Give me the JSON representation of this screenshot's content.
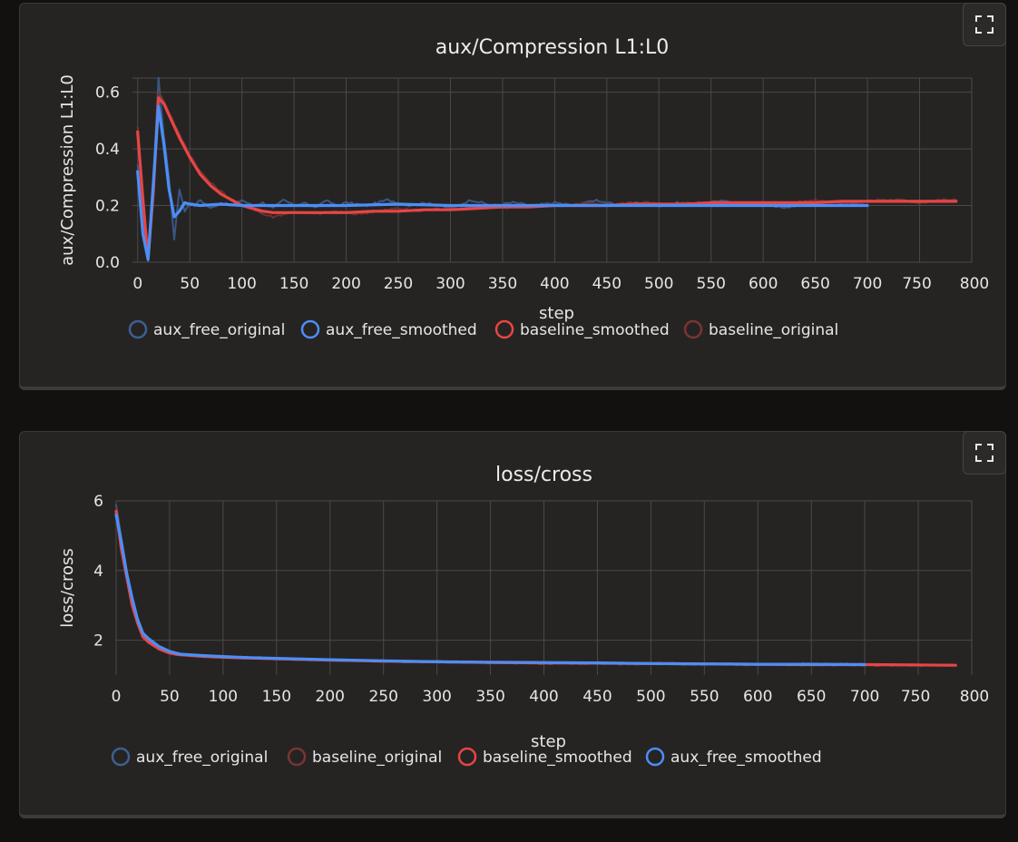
{
  "panels": [
    {
      "expand_icon": "fullscreen-icon",
      "chart_data": {
        "type": "line",
        "title": "aux/Compression L1:L0",
        "xlabel": "step",
        "ylabel": "aux/Compression L1:L0",
        "xlim": [
          -5,
          800
        ],
        "ylim": [
          0,
          0.65
        ],
        "x_ticks": [
          0,
          50,
          100,
          150,
          200,
          250,
          300,
          350,
          400,
          450,
          500,
          550,
          600,
          650,
          700,
          750,
          800
        ],
        "y_ticks": [
          0.0,
          0.2,
          0.4,
          0.6
        ],
        "y_tick_labels": [
          "0.0",
          "0.2",
          "0.4",
          "0.6"
        ],
        "grid": true,
        "legend_position": "bottom",
        "legend": [
          "aux_free_original",
          "aux_free_smoothed",
          "baseline_smoothed",
          "baseline_original"
        ],
        "series": [
          {
            "name": "aux_free_original",
            "color": "#3e5f93",
            "style": "raw",
            "x": [
              0,
              5,
              10,
              15,
              20,
              25,
              30,
              35,
              40,
              45,
              50,
              55,
              60,
              70,
              80,
              90,
              100,
              110,
              120,
              130,
              140,
              150,
              160,
              170,
              180,
              190,
              200,
              220,
              240,
              260,
              280,
              300,
              320,
              340,
              360,
              380,
              400,
              420,
              440,
              460,
              480,
              500,
              520,
              540,
              560,
              580,
              600,
              620,
              640,
              660,
              680,
              700
            ],
            "y": [
              0.34,
              0.1,
              0.0,
              0.3,
              0.65,
              0.45,
              0.3,
              0.08,
              0.26,
              0.18,
              0.21,
              0.2,
              0.22,
              0.19,
              0.21,
              0.2,
              0.22,
              0.2,
              0.21,
              0.19,
              0.22,
              0.2,
              0.21,
              0.19,
              0.22,
              0.2,
              0.21,
              0.2,
              0.22,
              0.2,
              0.21,
              0.19,
              0.22,
              0.2,
              0.21,
              0.2,
              0.21,
              0.2,
              0.22,
              0.2,
              0.21,
              0.2,
              0.21,
              0.2,
              0.22,
              0.2,
              0.21,
              0.19,
              0.21,
              0.2,
              0.21,
              0.2
            ]
          },
          {
            "name": "baseline_original",
            "color": "#7a3434",
            "style": "raw",
            "x": [
              0,
              5,
              10,
              15,
              20,
              25,
              30,
              40,
              50,
              60,
              70,
              80,
              90,
              100,
              110,
              120,
              130,
              140,
              150,
              170,
              190,
              210,
              230,
              250,
              270,
              290,
              310,
              330,
              350,
              370,
              390,
              410,
              430,
              450,
              470,
              490,
              510,
              530,
              550,
              570,
              590,
              610,
              630,
              650,
              670,
              690,
              710,
              730,
              750,
              770,
              785
            ],
            "y": [
              0.48,
              0.25,
              0.02,
              0.25,
              0.6,
              0.57,
              0.53,
              0.45,
              0.38,
              0.32,
              0.28,
              0.25,
              0.22,
              0.2,
              0.19,
              0.17,
              0.16,
              0.17,
              0.18,
              0.17,
              0.18,
              0.17,
              0.18,
              0.19,
              0.18,
              0.19,
              0.19,
              0.2,
              0.19,
              0.2,
              0.2,
              0.2,
              0.21,
              0.2,
              0.21,
              0.21,
              0.2,
              0.21,
              0.21,
              0.2,
              0.21,
              0.21,
              0.21,
              0.22,
              0.21,
              0.21,
              0.22,
              0.22,
              0.21,
              0.22,
              0.22
            ]
          },
          {
            "name": "baseline_smoothed",
            "color": "#e84545",
            "style": "smooth",
            "x": [
              0,
              5,
              10,
              15,
              20,
              25,
              30,
              40,
              50,
              60,
              70,
              80,
              90,
              100,
              110,
              120,
              130,
              140,
              150,
              175,
              200,
              225,
              250,
              275,
              300,
              325,
              350,
              375,
              400,
              425,
              450,
              475,
              500,
              525,
              550,
              575,
              600,
              625,
              650,
              675,
              700,
              725,
              750,
              775,
              785
            ],
            "y": [
              0.46,
              0.22,
              0.01,
              0.25,
              0.58,
              0.56,
              0.52,
              0.44,
              0.37,
              0.31,
              0.27,
              0.24,
              0.22,
              0.2,
              0.19,
              0.18,
              0.175,
              0.175,
              0.175,
              0.175,
              0.175,
              0.18,
              0.18,
              0.185,
              0.185,
              0.19,
              0.195,
              0.195,
              0.2,
              0.2,
              0.2,
              0.205,
              0.205,
              0.205,
              0.21,
              0.21,
              0.21,
              0.21,
              0.21,
              0.215,
              0.215,
              0.215,
              0.215,
              0.215,
              0.215
            ]
          },
          {
            "name": "aux_free_smoothed",
            "color": "#4c8ef7",
            "style": "smooth",
            "x": [
              0,
              5,
              10,
              15,
              20,
              25,
              30,
              35,
              40,
              45,
              50,
              60,
              80,
              100,
              125,
              150,
              175,
              200,
              250,
              300,
              350,
              400,
              450,
              500,
              550,
              600,
              650,
              700
            ],
            "y": [
              0.32,
              0.1,
              0.01,
              0.28,
              0.55,
              0.42,
              0.26,
              0.16,
              0.18,
              0.21,
              0.205,
              0.2,
              0.205,
              0.2,
              0.2,
              0.2,
              0.2,
              0.2,
              0.205,
              0.2,
              0.2,
              0.2,
              0.2,
              0.2,
              0.2,
              0.2,
              0.2,
              0.2
            ]
          }
        ]
      }
    },
    {
      "expand_icon": "fullscreen-icon",
      "chart_data": {
        "type": "line",
        "title": "loss/cross",
        "xlabel": "step",
        "ylabel": "loss/cross",
        "xlim": [
          0,
          800
        ],
        "ylim": [
          1.0,
          6.0
        ],
        "x_ticks": [
          0,
          50,
          100,
          150,
          200,
          250,
          300,
          350,
          400,
          450,
          500,
          550,
          600,
          650,
          700,
          750,
          800
        ],
        "y_ticks": [
          2,
          4,
          6
        ],
        "y_tick_labels": [
          "2",
          "4",
          "6"
        ],
        "grid": true,
        "legend_position": "bottom",
        "legend": [
          "aux_free_original",
          "baseline_original",
          "baseline_smoothed",
          "aux_free_smoothed"
        ],
        "series": [
          {
            "name": "aux_free_original",
            "color": "#3e5f93",
            "style": "raw",
            "x": [
              0,
              5,
              10,
              15,
              20,
              25,
              30,
              40,
              50,
              60,
              80,
              100,
              150,
              200,
              250,
              300,
              350,
              400,
              450,
              500,
              550,
              600,
              650,
              700
            ],
            "y": [
              5.9,
              4.9,
              3.9,
              3.2,
              2.6,
              2.2,
              2.0,
              1.8,
              1.65,
              1.6,
              1.55,
              1.52,
              1.47,
              1.43,
              1.4,
              1.38,
              1.36,
              1.35,
              1.34,
              1.33,
              1.32,
              1.31,
              1.31,
              1.3
            ]
          },
          {
            "name": "baseline_original",
            "color": "#7a3434",
            "style": "raw",
            "x": [
              0,
              5,
              10,
              15,
              20,
              25,
              30,
              40,
              50,
              60,
              80,
              100,
              150,
              200,
              250,
              300,
              350,
              400,
              450,
              500,
              550,
              600,
              650,
              700,
              750,
              785
            ],
            "y": [
              5.8,
              4.7,
              3.8,
              3.0,
              2.5,
              2.1,
              1.95,
              1.75,
              1.62,
              1.58,
              1.54,
              1.51,
              1.47,
              1.43,
              1.4,
              1.38,
              1.36,
              1.34,
              1.33,
              1.32,
              1.31,
              1.3,
              1.3,
              1.29,
              1.28,
              1.28
            ]
          },
          {
            "name": "baseline_smoothed",
            "color": "#e84545",
            "style": "smooth",
            "x": [
              0,
              5,
              10,
              15,
              20,
              25,
              30,
              40,
              50,
              60,
              80,
              100,
              150,
              200,
              250,
              300,
              350,
              400,
              450,
              500,
              550,
              600,
              650,
              700,
              750,
              785
            ],
            "y": [
              5.7,
              4.6,
              3.8,
              3.0,
              2.5,
              2.1,
              1.95,
              1.75,
              1.63,
              1.58,
              1.54,
              1.51,
              1.47,
              1.43,
              1.4,
              1.38,
              1.36,
              1.35,
              1.34,
              1.33,
              1.32,
              1.31,
              1.3,
              1.3,
              1.29,
              1.28
            ]
          },
          {
            "name": "aux_free_smoothed",
            "color": "#4c8ef7",
            "style": "smooth",
            "x": [
              0,
              5,
              10,
              15,
              20,
              25,
              30,
              40,
              50,
              60,
              80,
              100,
              125,
              150,
              200,
              250,
              300,
              350,
              400,
              450,
              500,
              550,
              600,
              650,
              700
            ],
            "y": [
              5.6,
              4.8,
              3.9,
              3.2,
              2.6,
              2.2,
              2.05,
              1.82,
              1.68,
              1.6,
              1.56,
              1.53,
              1.5,
              1.48,
              1.44,
              1.41,
              1.38,
              1.37,
              1.36,
              1.35,
              1.33,
              1.32,
              1.31,
              1.31,
              1.3
            ]
          }
        ]
      }
    }
  ]
}
